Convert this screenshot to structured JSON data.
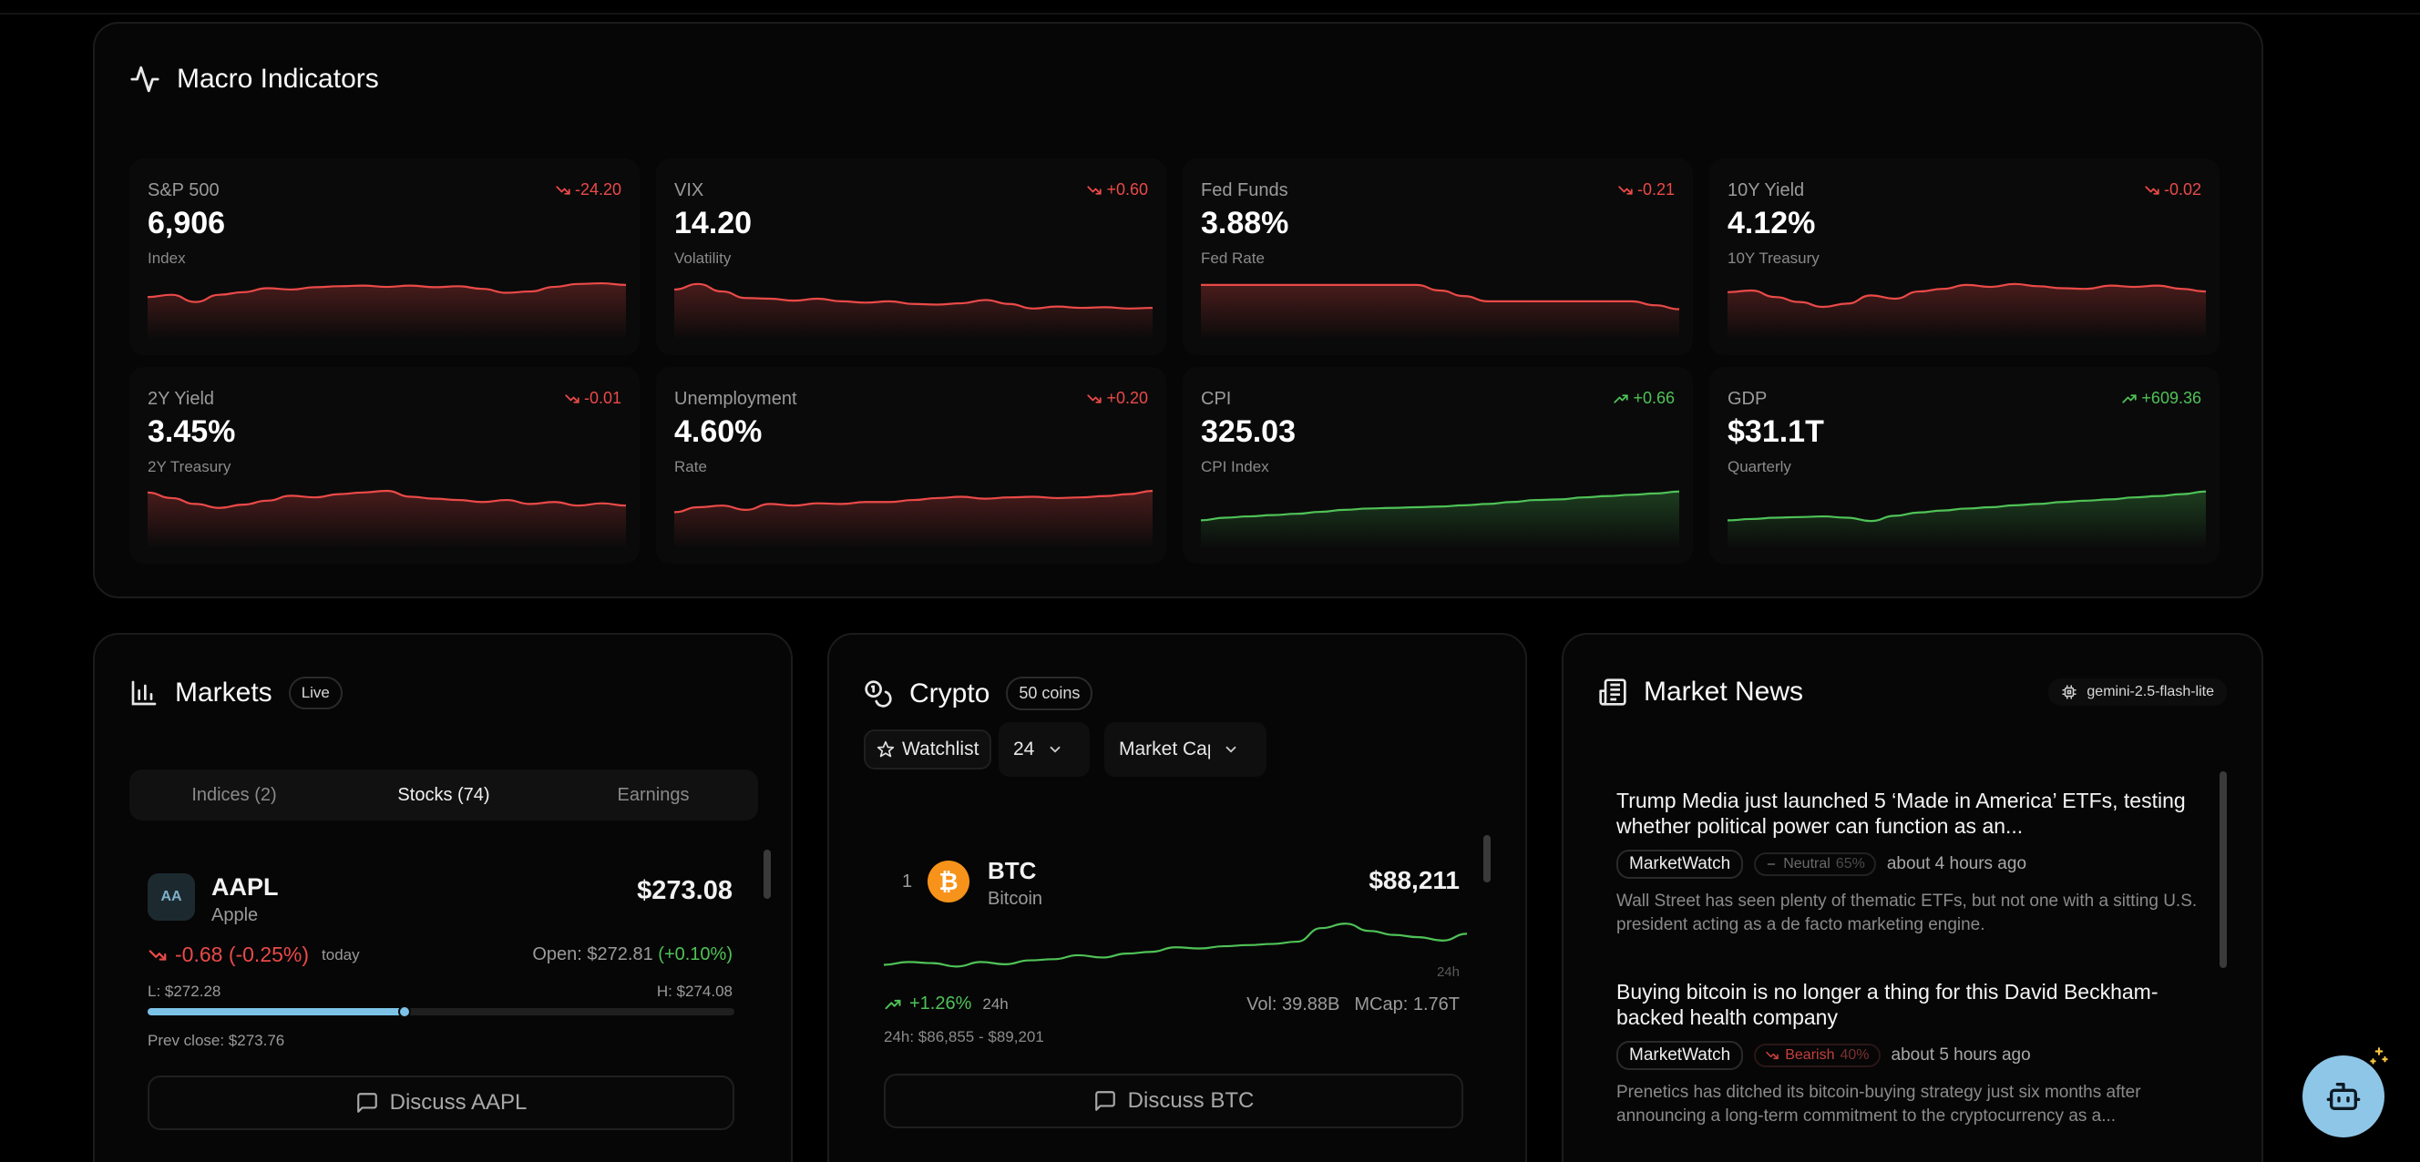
{
  "macro": {
    "title": "Macro Indicators",
    "cards": [
      {
        "label": "S&P 500",
        "change": "-24.20",
        "direction": "down",
        "value": "6,906",
        "sub": "Index",
        "series": [
          0.55,
          0.62,
          0.4,
          0.62,
          0.7,
          0.82,
          0.78,
          0.85,
          0.88,
          0.9,
          0.86,
          0.9,
          0.85,
          0.88,
          0.8,
          0.68,
          0.72,
          0.86,
          0.95,
          0.97,
          0.92
        ]
      },
      {
        "label": "VIX",
        "change": "+0.60",
        "direction": "down",
        "value": "14.20",
        "sub": "Volatility",
        "series": [
          0.78,
          0.95,
          0.72,
          0.52,
          0.5,
          0.44,
          0.5,
          0.42,
          0.38,
          0.42,
          0.34,
          0.32,
          0.36,
          0.46,
          0.34,
          0.2,
          0.26,
          0.22,
          0.24,
          0.2,
          0.22
        ]
      },
      {
        "label": "Fed Funds",
        "change": "-0.21",
        "direction": "down",
        "value": "3.88%",
        "sub": "Fed Rate",
        "series": [
          0.92,
          0.92,
          0.92,
          0.92,
          0.92,
          0.92,
          0.92,
          0.92,
          0.92,
          0.92,
          0.75,
          0.58,
          0.42,
          0.42,
          0.42,
          0.42,
          0.42,
          0.42,
          0.42,
          0.3,
          0.18
        ]
      },
      {
        "label": "10Y Yield",
        "change": "-0.02",
        "direction": "down",
        "value": "4.12%",
        "sub": "10Y Treasury",
        "series": [
          0.7,
          0.75,
          0.55,
          0.4,
          0.25,
          0.35,
          0.6,
          0.5,
          0.72,
          0.8,
          0.92,
          0.86,
          0.95,
          0.88,
          0.82,
          0.8,
          0.9,
          0.86,
          0.9,
          0.8,
          0.72
        ]
      },
      {
        "label": "2Y Yield",
        "change": "-0.01",
        "direction": "down",
        "value": "3.45%",
        "sub": "2Y Treasury",
        "series": [
          0.95,
          0.78,
          0.6,
          0.48,
          0.58,
          0.7,
          0.85,
          0.8,
          0.9,
          0.95,
          1.0,
          0.82,
          0.76,
          0.72,
          0.66,
          0.72,
          0.6,
          0.66,
          0.55,
          0.62,
          0.55
        ]
      },
      {
        "label": "Unemployment",
        "change": "+0.20",
        "direction": "down",
        "value": "4.60%",
        "sub": "Rate",
        "series": [
          0.35,
          0.5,
          0.55,
          0.42,
          0.6,
          0.55,
          0.62,
          0.6,
          0.66,
          0.66,
          0.72,
          0.78,
          0.82,
          0.76,
          0.8,
          0.82,
          0.78,
          0.8,
          0.84,
          0.9,
          1.0
        ]
      },
      {
        "label": "CPI",
        "change": "+0.66",
        "direction": "up",
        "value": "325.03",
        "sub": "CPI Index",
        "series": [
          0.1,
          0.18,
          0.22,
          0.26,
          0.3,
          0.36,
          0.42,
          0.46,
          0.48,
          0.5,
          0.52,
          0.56,
          0.6,
          0.66,
          0.72,
          0.74,
          0.8,
          0.84,
          0.88,
          0.92,
          0.98
        ]
      },
      {
        "label": "GDP",
        "change": "+609.36",
        "direction": "up",
        "value": "$31.1T",
        "sub": "Quarterly",
        "series": [
          0.1,
          0.14,
          0.18,
          0.2,
          0.22,
          0.18,
          0.08,
          0.24,
          0.34,
          0.4,
          0.46,
          0.5,
          0.56,
          0.6,
          0.66,
          0.7,
          0.74,
          0.8,
          0.84,
          0.9,
          0.98
        ]
      }
    ]
  },
  "markets": {
    "title": "Markets",
    "badge": "Live",
    "tabs": [
      "Indices (2)",
      "Stocks (74)",
      "Earnings"
    ],
    "active_tab": 1,
    "stock": {
      "logo": "AA",
      "symbol": "AAPL",
      "name": "Apple",
      "price": "$273.08",
      "change": "-0.68 (-0.25%)",
      "period": "today",
      "open_label": "Open: $272.81",
      "open_change": "(+0.10%)",
      "low": "L: $272.28",
      "high": "H: $274.08",
      "range_fraction": 0.44,
      "prev_close": "Prev close: $273.76",
      "discuss": "Discuss AAPL"
    }
  },
  "crypto": {
    "title": "Crypto",
    "badge": "50 coins",
    "watchlist": "Watchlist",
    "count": "24",
    "sort": "Market Cap",
    "coin": {
      "rank": "1",
      "symbol": "BTC",
      "name": "Bitcoin",
      "price": "$88,211",
      "period_tag": "24h",
      "change": "+1.26%",
      "change_period": "24h",
      "vol": "Vol: 39.88B",
      "mcap": "MCap: 1.76T",
      "range": "24h: $86,855 - $89,201",
      "discuss": "Discuss BTC",
      "series": [
        0.25,
        0.3,
        0.28,
        0.22,
        0.3,
        0.26,
        0.33,
        0.35,
        0.42,
        0.38,
        0.45,
        0.48,
        0.56,
        0.54,
        0.58,
        0.6,
        0.62,
        0.66,
        0.9,
        0.98,
        0.85,
        0.78,
        0.74,
        0.68,
        0.8
      ]
    }
  },
  "news": {
    "title": "Market News",
    "model": "gemini-2.5-flash-lite",
    "items": [
      {
        "headline": "Trump Media just launched 5 ‘Made in America’ ETFs, testing whether political power can function as an...",
        "source": "MarketWatch",
        "sentiment": "Neutral",
        "confidence": "65%",
        "time": "about 4 hours ago",
        "desc": "Wall Street has seen plenty of thematic ETFs, but not one with a sitting U.S. president acting as a de facto marketing engine."
      },
      {
        "headline": "Buying bitcoin is no longer a thing for this David Beckham-backed health company",
        "source": "MarketWatch",
        "sentiment": "Bearish",
        "confidence": "40%",
        "time": "about 5 hours ago",
        "desc": "Prenetics has ditched its bitcoin-buying strategy just six months after announcing a long-term commitment to the cryptocurrency as a..."
      }
    ]
  },
  "colors": {
    "down": "#ea4a48",
    "up": "#4fc257",
    "accent": "#8ec6e8",
    "btc": "#f7931a"
  }
}
